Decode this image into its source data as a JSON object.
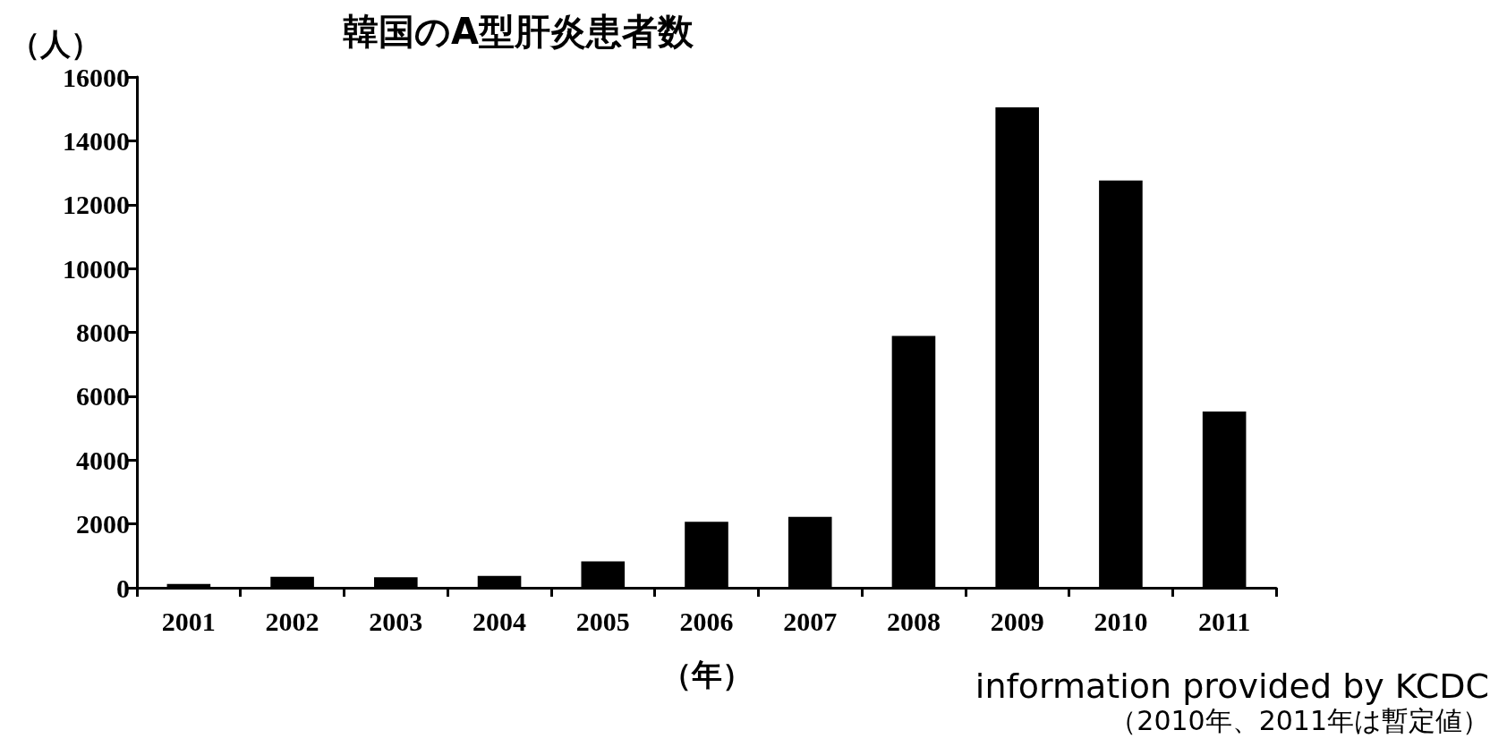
{
  "chart_data": {
    "type": "bar",
    "title": "韓国のA型肝炎患者数",
    "ylabel": "（人）",
    "xlabel": "（年）",
    "categories": [
      "2001",
      "2002",
      "2003",
      "2004",
      "2005",
      "2006",
      "2007",
      "2008",
      "2009",
      "2010",
      "2011"
    ],
    "values": [
      120,
      340,
      330,
      370,
      830,
      2070,
      2220,
      7890,
      15050,
      12760,
      5520
    ],
    "color": "#000000",
    "ylim": [
      0,
      16000
    ],
    "yticks": [
      0,
      2000,
      4000,
      6000,
      8000,
      10000,
      12000,
      14000,
      16000
    ],
    "annotations": [
      "information provided by KCDC",
      "（2010年、2011年は暫定値）"
    ]
  }
}
